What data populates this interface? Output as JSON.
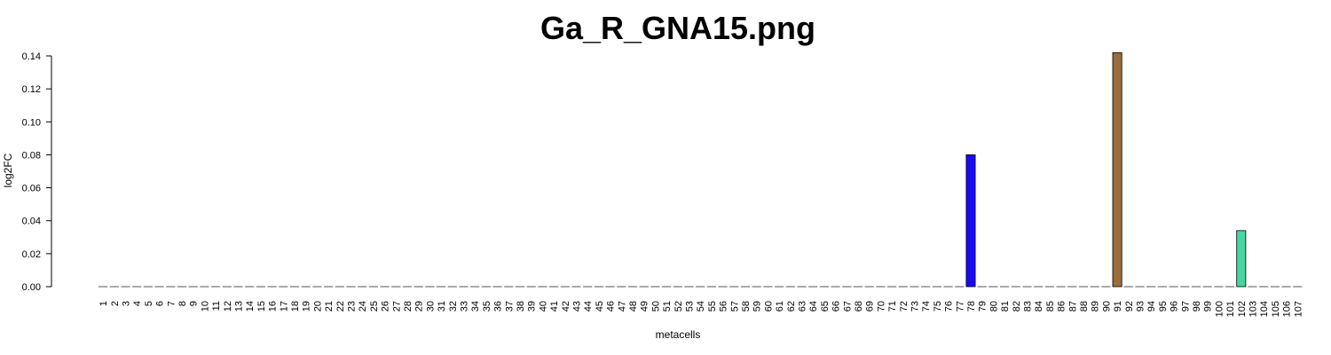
{
  "chart_data": {
    "type": "bar",
    "title": "Ga_R_GNA15.png",
    "xlabel": "metacells",
    "ylabel": "log2FC",
    "ylim": [
      0,
      0.14
    ],
    "yticks": [
      "0.00",
      "0.02",
      "0.04",
      "0.06",
      "0.08",
      "0.10",
      "0.12",
      "0.14"
    ],
    "grid": false,
    "legend": "none",
    "categories": [
      "1",
      "2",
      "3",
      "4",
      "5",
      "6",
      "7",
      "8",
      "9",
      "10",
      "11",
      "12",
      "13",
      "14",
      "15",
      "16",
      "17",
      "18",
      "19",
      "20",
      "21",
      "22",
      "23",
      "24",
      "25",
      "26",
      "27",
      "28",
      "29",
      "30",
      "31",
      "32",
      "33",
      "34",
      "35",
      "36",
      "37",
      "38",
      "39",
      "40",
      "41",
      "42",
      "43",
      "44",
      "45",
      "46",
      "47",
      "48",
      "49",
      "50",
      "51",
      "52",
      "53",
      "54",
      "55",
      "56",
      "57",
      "58",
      "59",
      "60",
      "61",
      "62",
      "63",
      "64",
      "65",
      "66",
      "67",
      "68",
      "69",
      "70",
      "71",
      "72",
      "73",
      "74",
      "75",
      "76",
      "77",
      "78",
      "79",
      "80",
      "81",
      "82",
      "83",
      "84",
      "85",
      "86",
      "87",
      "88",
      "89",
      "90",
      "91",
      "92",
      "93",
      "94",
      "95",
      "96",
      "97",
      "98",
      "99",
      "100",
      "101",
      "102",
      "103",
      "104",
      "105",
      "106",
      "107"
    ],
    "values": [
      0,
      0,
      0,
      0,
      0,
      0,
      0,
      0,
      0,
      0,
      0,
      0,
      0,
      0,
      0,
      0,
      0,
      0,
      0,
      0,
      0,
      0,
      0,
      0,
      0,
      0,
      0,
      0,
      0,
      0,
      0,
      0,
      0,
      0,
      0,
      0,
      0,
      0,
      0,
      0,
      0,
      0,
      0,
      0,
      0,
      0,
      0,
      0,
      0,
      0,
      0,
      0,
      0,
      0,
      0,
      0,
      0,
      0,
      0,
      0,
      0,
      0,
      0,
      0,
      0,
      0,
      0,
      0,
      0,
      0,
      0,
      0,
      0,
      0,
      0,
      0,
      0,
      0.08,
      0,
      0,
      0,
      0,
      0,
      0,
      0,
      0,
      0,
      0,
      0,
      0,
      0.142,
      0,
      0,
      0,
      0,
      0,
      0,
      0,
      0,
      0,
      0,
      0.034,
      0,
      0,
      0,
      0,
      0
    ],
    "colors": {
      "78": "#1a0af2",
      "91": "#9a6e3c",
      "102": "#45d6a1"
    },
    "default_color": "#bebebe",
    "bar_border": "#000000"
  }
}
